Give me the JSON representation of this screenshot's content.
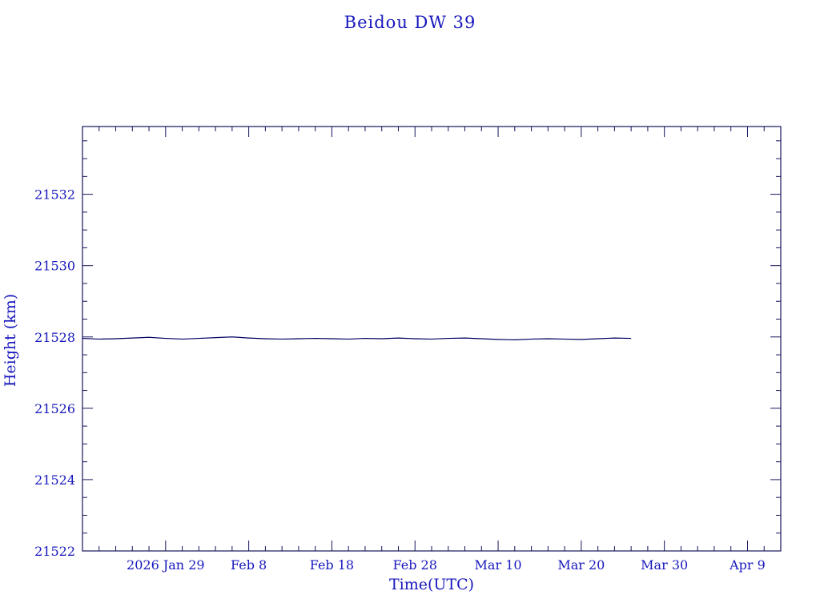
{
  "colors": {
    "text": "#1717bd",
    "frame": "#14145a",
    "line": "#000060",
    "background": "#ffffff"
  },
  "chart_data": {
    "type": "line",
    "title": "Beidou DW 39",
    "xlabel": "Time(UTC)",
    "ylabel": "Height (km)",
    "x_unit": "days since 2026 Jan 19",
    "xlim": [
      0,
      84
    ],
    "ylim": [
      21522,
      21533.9
    ],
    "grid": false,
    "legend": "none",
    "x_ticks": [
      {
        "pos": 10,
        "label": "2026 Jan 29"
      },
      {
        "pos": 20,
        "label": "Feb 8"
      },
      {
        "pos": 30,
        "label": "Feb 18"
      },
      {
        "pos": 40,
        "label": "Feb 28"
      },
      {
        "pos": 50,
        "label": "Mar 10"
      },
      {
        "pos": 60,
        "label": "Mar 20"
      },
      {
        "pos": 70,
        "label": "Mar 30"
      },
      {
        "pos": 80,
        "label": "Apr 9"
      }
    ],
    "x_minor_step": 2,
    "y_ticks": [
      21522,
      21524,
      21526,
      21528,
      21530,
      21532
    ],
    "y_minor_step": 0.5,
    "series": [
      {
        "name": "height",
        "x": [
          0,
          2,
          4,
          6,
          8,
          10,
          12,
          14,
          16,
          18,
          20,
          22,
          24,
          26,
          28,
          30,
          32,
          34,
          36,
          38,
          40,
          42,
          44,
          46,
          48,
          50,
          52,
          54,
          56,
          58,
          60,
          62,
          64,
          66
        ],
        "y": [
          21527.96,
          21527.94,
          21527.95,
          21527.97,
          21527.99,
          21527.96,
          21527.94,
          21527.96,
          21527.98,
          21528.0,
          21527.97,
          21527.95,
          21527.94,
          21527.95,
          21527.96,
          21527.95,
          21527.94,
          21527.96,
          21527.95,
          21527.97,
          21527.95,
          21527.94,
          21527.96,
          21527.97,
          21527.95,
          21527.93,
          21527.92,
          21527.94,
          21527.95,
          21527.94,
          21527.93,
          21527.95,
          21527.97,
          21527.96
        ]
      }
    ]
  }
}
